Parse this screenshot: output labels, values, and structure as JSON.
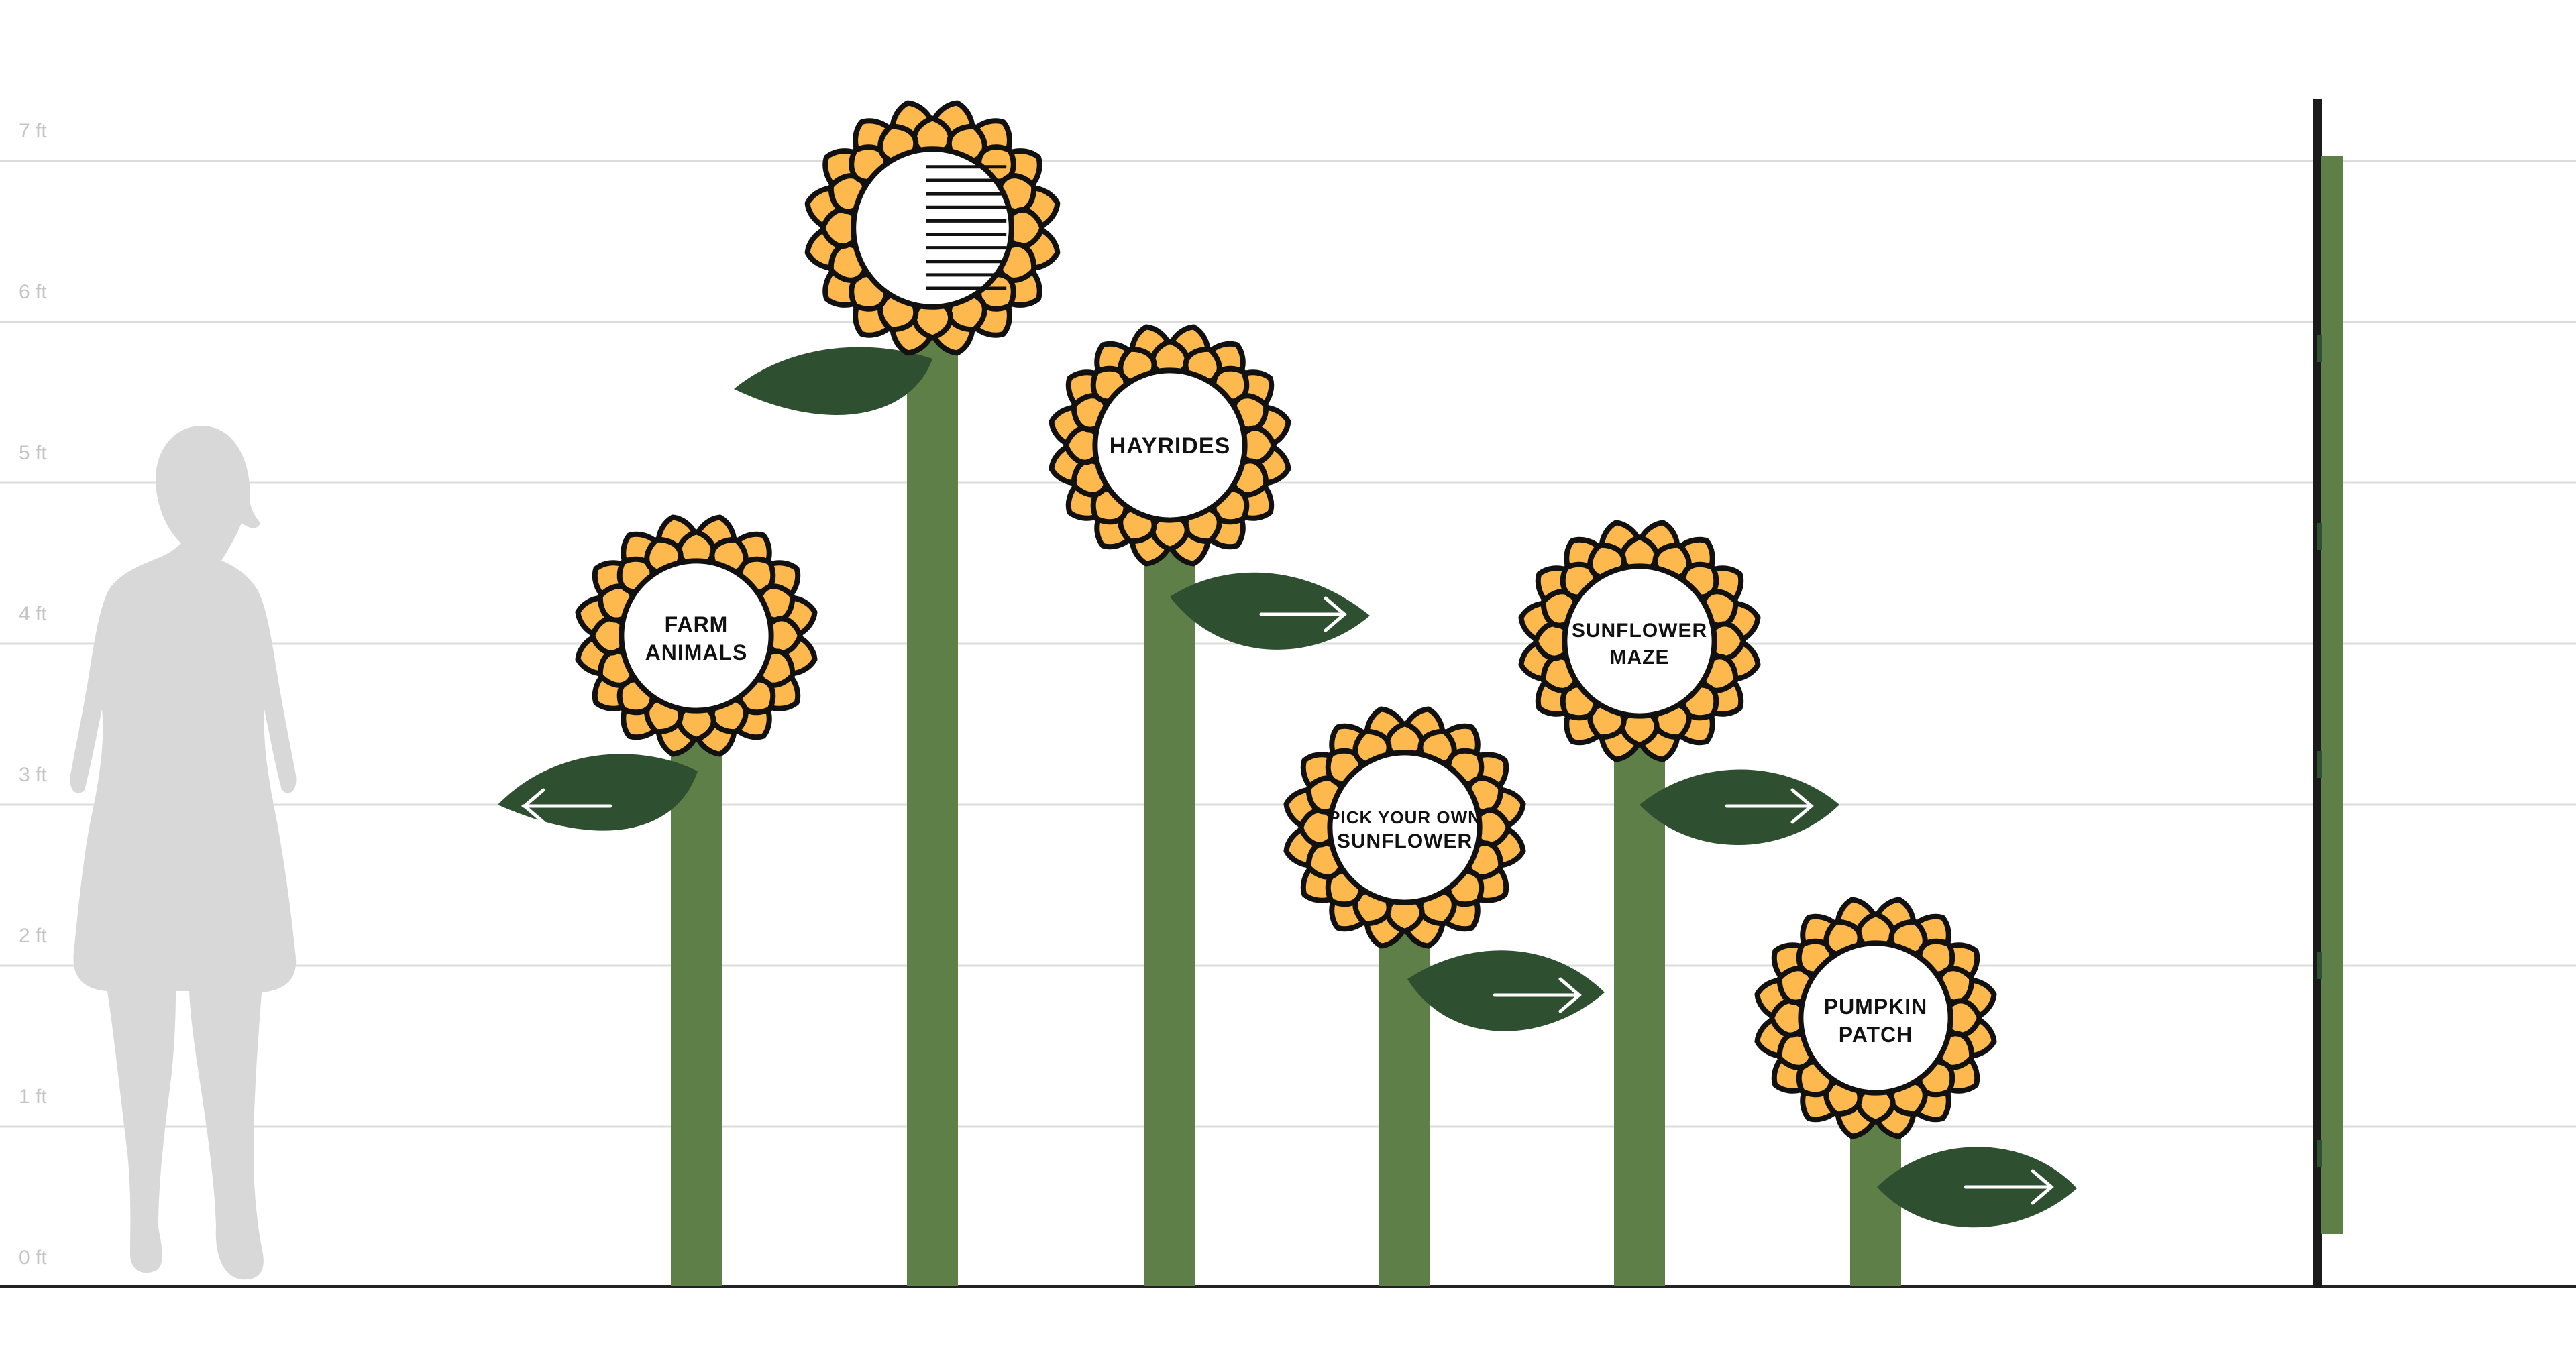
{
  "scale": {
    "unit_labels": [
      "0 ft",
      "1 ft",
      "2 ft",
      "3 ft",
      "4 ft",
      "5 ft",
      "6 ft",
      "7 ft"
    ]
  },
  "colors": {
    "petal": "#fdb94d",
    "outline": "#111111",
    "stem": "#5f7f48",
    "leaf": "#2f5030",
    "gridline": "#dcdcdc",
    "silhouette": "#d8d8d8",
    "ground": "#222222"
  },
  "signs": [
    {
      "id": "farm-animals",
      "line1": "FARM",
      "line2": "ANIMALS",
      "arrow": "left"
    },
    {
      "id": "blank-sign",
      "line1": "",
      "line2": "",
      "arrow": "none"
    },
    {
      "id": "hayrides",
      "line1": "HAYRIDES",
      "line2": "",
      "arrow": "right"
    },
    {
      "id": "pick-your-own",
      "line1": "PICK YOUR OWN",
      "line2": "SUNFLOWER",
      "arrow": "right"
    },
    {
      "id": "sunflower-maze",
      "line1": "SUNFLOWER",
      "line2": "MAZE",
      "arrow": "right"
    },
    {
      "id": "pumpkin-patch",
      "line1": "PUMPKIN",
      "line2": "PATCH",
      "arrow": "right"
    }
  ],
  "icons": {
    "silhouette": "person-silhouette-icon",
    "arrow_left": "arrow-left-icon",
    "arrow_right": "arrow-right-icon"
  }
}
